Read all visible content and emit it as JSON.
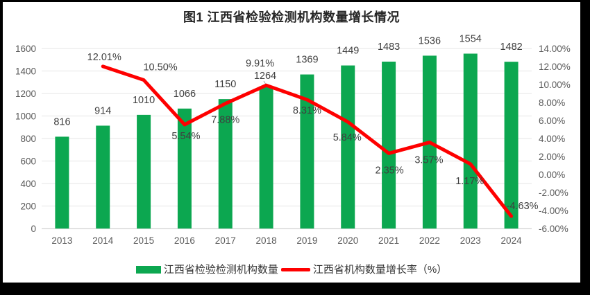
{
  "chart_data": {
    "type": "bar+line",
    "title": "图1 江西省检验检测机构数量增长情况",
    "categories": [
      "2013",
      "2014",
      "2015",
      "2016",
      "2017",
      "2018",
      "2019",
      "2020",
      "2021",
      "2022",
      "2023",
      "2024"
    ],
    "series": [
      {
        "name": "江西省检验检测机构数量",
        "type": "bar",
        "axis": "left",
        "color": "#0CA750",
        "values": [
          816,
          914,
          1010,
          1066,
          1150,
          1264,
          1369,
          1449,
          1483,
          1536,
          1554,
          1482
        ],
        "labels": [
          "816",
          "914",
          "1010",
          "1066",
          "1150",
          "1264",
          "1369",
          "1449",
          "1483",
          "1536",
          "1554",
          "1482"
        ]
      },
      {
        "name": "江西省机构数量增长率（%）",
        "type": "line",
        "axis": "right",
        "color": "#FE0000",
        "values": [
          null,
          12.01,
          10.5,
          5.54,
          7.88,
          9.91,
          8.31,
          5.84,
          2.35,
          3.57,
          1.17,
          -4.63
        ],
        "labels": [
          null,
          "12.01%",
          "10.50%",
          "5.54%",
          "7.88%",
          "9.91%",
          "8.31%",
          "5.84%",
          "2.35%",
          "3.57%",
          "1.17%",
          "-4.63%"
        ]
      }
    ],
    "left_axis": {
      "min": 0,
      "max": 1600,
      "step": 200,
      "ticks": [
        "1600",
        "1400",
        "1200",
        "1000",
        "800",
        "600",
        "400",
        "200",
        "0"
      ]
    },
    "right_axis": {
      "min": -6,
      "max": 14,
      "step": 2,
      "ticks": [
        "14.00%",
        "12.00%",
        "10.00%",
        "8.00%",
        "6.00%",
        "4.00%",
        "2.00%",
        "0.00%",
        "-2.00%",
        "-4.00%",
        "-6.00%"
      ]
    },
    "grid": true,
    "legend_position": "bottom",
    "colors": {
      "grid": "#E4E4E4",
      "axis_line": "#C6C6C6",
      "tick_text": "#595959",
      "data_label_text": "#3F3F3F",
      "leader_line": "#A8A8A8"
    }
  }
}
